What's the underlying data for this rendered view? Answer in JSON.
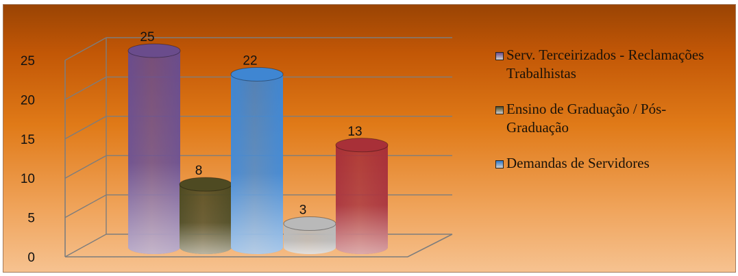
{
  "chart_data": {
    "type": "bar",
    "categories": [
      "Serv. Terceirizados - Reclamações Trabalhistas",
      "Ensino de Graduação / Pós-Graduação",
      "Demandas de Servidores",
      "",
      ""
    ],
    "values": [
      25,
      8,
      22,
      3,
      13
    ],
    "data_labels": [
      "25",
      "8",
      "22",
      "3",
      "13"
    ],
    "bar_colors": [
      "#6a4c8c",
      "#4e4a22",
      "#3f86d2",
      "#b9b9b9",
      "#a83038"
    ],
    "yticks": [
      "0",
      "5",
      "10",
      "15",
      "20",
      "25"
    ],
    "ylim": [
      0,
      25
    ],
    "grid": true,
    "legend_position": "right",
    "legend": [
      {
        "label": "Serv. Terceirizados - Reclamações Trabalhistas",
        "color": "#6a4c8c"
      },
      {
        "label": "Ensino de Graduação / Pós-Graduação",
        "color": "#4e4a22"
      },
      {
        "label": "Demandas de Servidores",
        "color": "#2f78c8"
      }
    ]
  }
}
